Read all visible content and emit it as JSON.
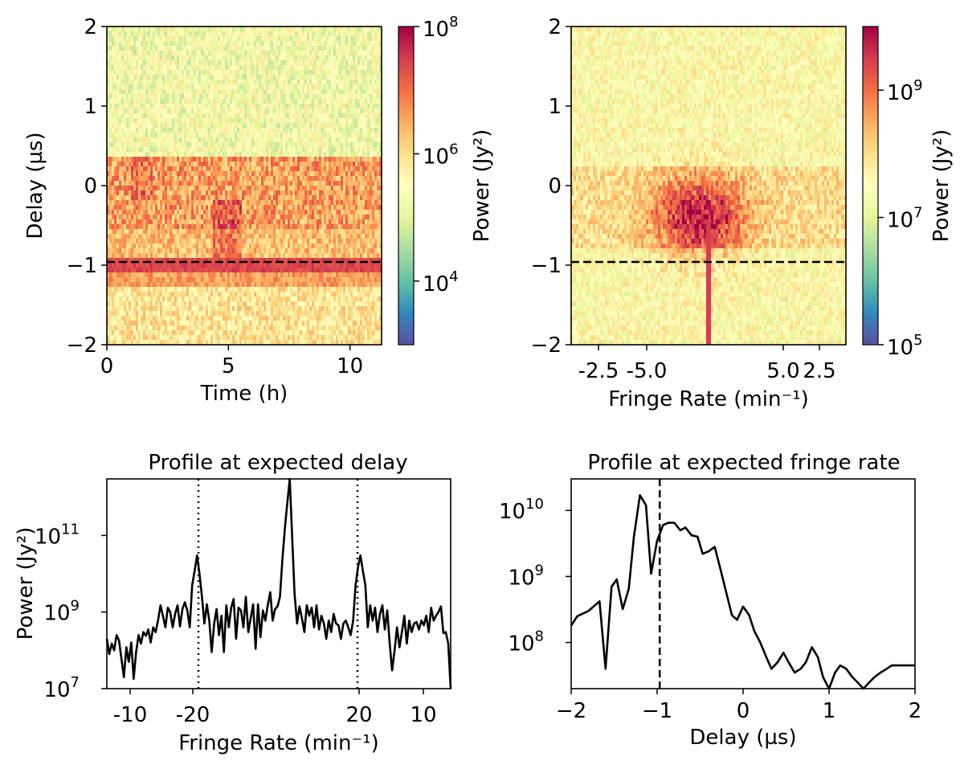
{
  "chart_data": [
    {
      "type": "heatmap",
      "id": "delay-time",
      "xlabel": "Time (h)",
      "ylabel": "Delay (µs)",
      "x_range": [
        0,
        11.3
      ],
      "y_range": [
        -2,
        2
      ],
      "x_ticks": [
        {
          "value": 0,
          "label": "0"
        },
        {
          "value": 5,
          "label": "5"
        },
        {
          "value": 10,
          "label": "10"
        }
      ],
      "y_ticks": [
        {
          "value": -2,
          "label": "−2"
        },
        {
          "value": -1,
          "label": "−1"
        },
        {
          "value": 0,
          "label": "0"
        },
        {
          "value": 1,
          "label": "1"
        },
        {
          "value": 2,
          "label": "2"
        }
      ],
      "colorbar": {
        "label": "Power (Jy²)",
        "scale": "log",
        "range": [
          1000,
          100000000
        ],
        "ticks": [
          {
            "value": 10000,
            "base": "10",
            "exp": "4"
          },
          {
            "value": 1000000,
            "base": "10",
            "exp": "6"
          },
          {
            "value": 100000000,
            "base": "10",
            "exp": "8"
          }
        ]
      },
      "hline": {
        "y": -0.97,
        "style": "dashed"
      },
      "colormap": "Spectral_r"
    },
    {
      "type": "heatmap",
      "id": "delay-fringe-rate",
      "xlabel": "Fringe Rate (min⁻¹)",
      "ylabel": "",
      "y_range": [
        -2,
        2
      ],
      "x_ticks": [
        {
          "label": "-2.5"
        },
        {
          "label": "-5.0"
        },
        {
          "label": "5.0"
        },
        {
          "label": "2.5"
        }
      ],
      "y_ticks": [
        {
          "value": -2,
          "label": "−2"
        },
        {
          "value": -1,
          "label": "−1"
        },
        {
          "value": 0,
          "label": "0"
        },
        {
          "value": 1,
          "label": "1"
        },
        {
          "value": 2,
          "label": "2"
        }
      ],
      "colorbar": {
        "label": "Power (Jy²)",
        "scale": "log",
        "range": [
          100000,
          10000000000
        ],
        "ticks": [
          {
            "value": 100000,
            "base": "10",
            "exp": "5"
          },
          {
            "value": 10000000,
            "base": "10",
            "exp": "7"
          },
          {
            "value": 1000000000,
            "base": "10",
            "exp": "9"
          }
        ]
      },
      "hline": {
        "y": -0.97,
        "style": "dashed"
      },
      "colormap": "Spectral_r"
    },
    {
      "type": "line",
      "id": "profile-delay",
      "title": "Profile at expected delay",
      "xlabel": "Fringe Rate (min⁻¹)",
      "ylabel": "Power (Jy²)",
      "yscale": "log",
      "ylim": [
        10000000,
        3000000000000
      ],
      "x_ticks": [
        {
          "label": "-10"
        },
        {
          "label": "-20"
        },
        {
          "label": "20"
        },
        {
          "label": "10"
        }
      ],
      "y_ticks": [
        {
          "value": 10000000,
          "base": "10",
          "exp": "7"
        },
        {
          "value": 1000000000,
          "base": "10",
          "exp": "9"
        },
        {
          "value": 100000000000,
          "base": "10",
          "exp": "11"
        }
      ],
      "vlines": [
        {
          "at_tick": "-20",
          "style": "dotted"
        },
        {
          "at_tick": "20",
          "style": "dotted"
        }
      ],
      "series": [
        {
          "values": [
            200000000.0,
            80000000.0,
            150000000.0,
            100000000.0,
            250000000.0,
            180000000.0,
            60000000.0,
            20000000.0,
            120000000.0,
            50000000.0,
            160000000.0,
            18000000.0,
            90000000.0,
            250000000.0,
            150000000.0,
            300000000.0,
            240000000.0,
            350000000.0,
            160000000.0,
            400000000.0,
            300000000.0,
            600000000.0,
            1500000000.0,
            800000000.0,
            400000000.0,
            1300000000.0,
            1000000000.0,
            400000000.0,
            900000000.0,
            1500000000.0,
            420000000.0,
            1200000000.0,
            1800000000.0,
            1100000000.0,
            400000000.0,
            5000000000.0,
            12000000000.0,
            30000000000.0,
            10000000000.0,
            2500000000.0,
            500000000.0,
            1600000000.0,
            600000000.0,
            90000000.0,
            500000000.0,
            1200000000.0,
            250000000.0,
            800000000.0,
            90000000.0,
            1500000000.0,
            400000000.0,
            1300000000.0,
            2200000000.0,
            200000000.0,
            1300000000.0,
            1100000000.0,
            400000000.0,
            2500000000.0,
            300000000.0,
            700000000.0,
            1600000000.0,
            110000000.0,
            1600000000.0,
            220000000.0,
            1100000000.0,
            600000000.0,
            1500000000.0,
            3300000000.0,
            600000000.0,
            1200000000.0,
            1400000000.0,
            2500000000.0,
            25000000000.0,
            150000000000.0,
            700000000000.0,
            3500000000000.0,
            90000000000.0,
            3000000000.0,
            500000000.0,
            1400000000.0,
            700000000.0,
            300000000.0,
            1500000000.0,
            800000000.0,
            1300000000.0,
            400000000.0,
            1500000000.0,
            350000000.0,
            800000000.0,
            500000000.0,
            200000000.0,
            600000000.0,
            300000000.0,
            900000000.0,
            500000000.0,
            450000000.0,
            200000000.0,
            500000000.0,
            600000000.0,
            400000000.0,
            250000000.0,
            600000000.0,
            5000000000.0,
            15000000000.0,
            30000000000.0,
            12000000000.0,
            5000000000.0,
            400000000.0,
            1500000000.0,
            600000000.0,
            1300000000.0,
            300000000.0,
            900000000.0,
            1500000000.0,
            350000000.0,
            1100000000.0,
            150000000.0,
            30000000.0,
            100000000.0,
            400000000.0,
            120000000.0,
            300000000.0,
            800000000.0,
            150000000.0,
            600000000.0,
            300000000.0,
            500000000.0,
            550000000.0,
            350000000.0,
            600000000.0,
            450000000.0,
            800000000.0,
            300000000.0,
            1300000000.0,
            600000000.0,
            800000000.0,
            1000000000.0,
            1400000000.0,
            280000000.0,
            300000000.0,
            150000000.0,
            10000000.0
          ]
        }
      ]
    },
    {
      "type": "line",
      "id": "profile-fringe-rate",
      "title": "Profile at expected fringe rate",
      "xlabel": "Delay (µs)",
      "ylabel": "",
      "yscale": "log",
      "xlim": [
        -2,
        2
      ],
      "ylim": [
        20000000,
        30000000000
      ],
      "x_ticks": [
        {
          "value": -2,
          "label": "−2"
        },
        {
          "value": -1,
          "label": "−1"
        },
        {
          "value": 0,
          "label": "0"
        },
        {
          "value": 1,
          "label": "1"
        },
        {
          "value": 2,
          "label": "2"
        }
      ],
      "y_ticks": [
        {
          "value": 100000000,
          "base": "10",
          "exp": "8"
        },
        {
          "value": 1000000000,
          "base": "10",
          "exp": "9"
        },
        {
          "value": 10000000000,
          "base": "10",
          "exp": "10"
        }
      ],
      "vlines": [
        {
          "x": -0.97,
          "style": "dashed"
        }
      ],
      "series": [
        {
          "x": [
            -2,
            -1.93,
            -1.8,
            -1.67,
            -1.6,
            -1.53,
            -1.47,
            -1.4,
            -1.33,
            -1.27,
            -1.2,
            -1.13,
            -1.07,
            -1.0,
            -0.93,
            -0.87,
            -0.8,
            -0.73,
            -0.67,
            -0.6,
            -0.53,
            -0.47,
            -0.4,
            -0.33,
            -0.27,
            -0.2,
            -0.13,
            -0.07,
            0.0,
            0.07,
            0.13,
            0.2,
            0.27,
            0.33,
            0.4,
            0.47,
            0.53,
            0.6,
            0.67,
            0.73,
            0.8,
            0.87,
            0.93,
            1.0,
            1.07,
            1.13,
            1.2,
            1.27,
            1.33,
            1.4,
            1.47,
            1.53,
            1.6,
            1.67,
            1.73,
            1.8,
            1.87,
            1.93,
            2.0
          ],
          "y": [
            180000000.0,
            250000000.0,
            300000000.0,
            420000000.0,
            40000000.0,
            700000000.0,
            900000000.0,
            320000000.0,
            650000000.0,
            4000000000.0,
            17000000000.0,
            12000000000.0,
            1100000000.0,
            3500000000.0,
            6000000000.0,
            6500000000.0,
            6500000000.0,
            5000000000.0,
            5500000000.0,
            4200000000.0,
            4000000000.0,
            2200000000.0,
            2400000000.0,
            2800000000.0,
            1400000000.0,
            600000000.0,
            260000000.0,
            220000000.0,
            350000000.0,
            260000000.0,
            150000000.0,
            100000000.0,
            60000000.0,
            40000000.0,
            50000000.0,
            70000000.0,
            50000000.0,
            35000000.0,
            40000000.0,
            50000000.0,
            85000000.0,
            60000000.0,
            30000000.0,
            20000000.0,
            35000000.0,
            45000000.0,
            40000000.0,
            30000000.0,
            25000000.0,
            20000000.0,
            25000000.0,
            30000000.0,
            35000000.0,
            40000000.0,
            45000000.0,
            45000000.0,
            45000000.0,
            45000000.0,
            45000000.0
          ]
        }
      ]
    }
  ]
}
